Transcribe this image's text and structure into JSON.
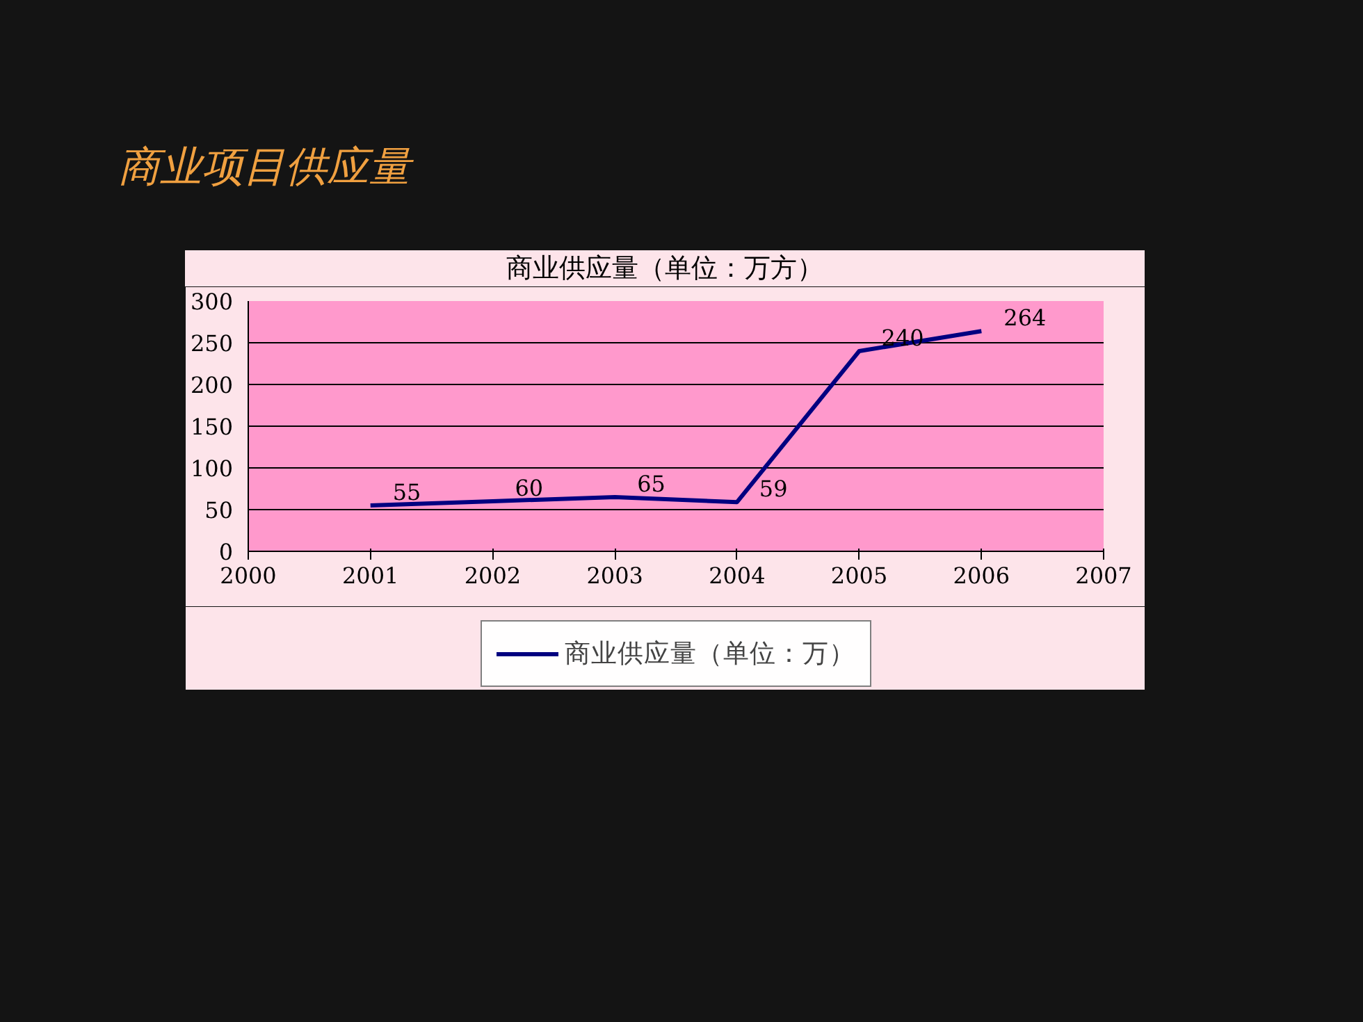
{
  "chart_data": {
    "type": "line",
    "title": "商业项目供应量",
    "subtitle": "商业供应量（单位：万方）",
    "x": [
      2001,
      2002,
      2003,
      2004,
      2005,
      2006
    ],
    "series": [
      {
        "name": "商业供应量（单位：万）",
        "color": "#000080",
        "values": [
          55,
          60,
          65,
          59,
          240,
          264
        ]
      }
    ],
    "xlim": [
      2000,
      2007
    ],
    "xticks": [
      2000,
      2001,
      2002,
      2003,
      2004,
      2005,
      2006,
      2007
    ],
    "ylim": [
      0,
      300
    ],
    "yticks": [
      0,
      50,
      100,
      150,
      200,
      250,
      300
    ],
    "data_labels": true,
    "grid": "y",
    "legend": "bottom",
    "marker": "none",
    "line_style": "solid"
  }
}
